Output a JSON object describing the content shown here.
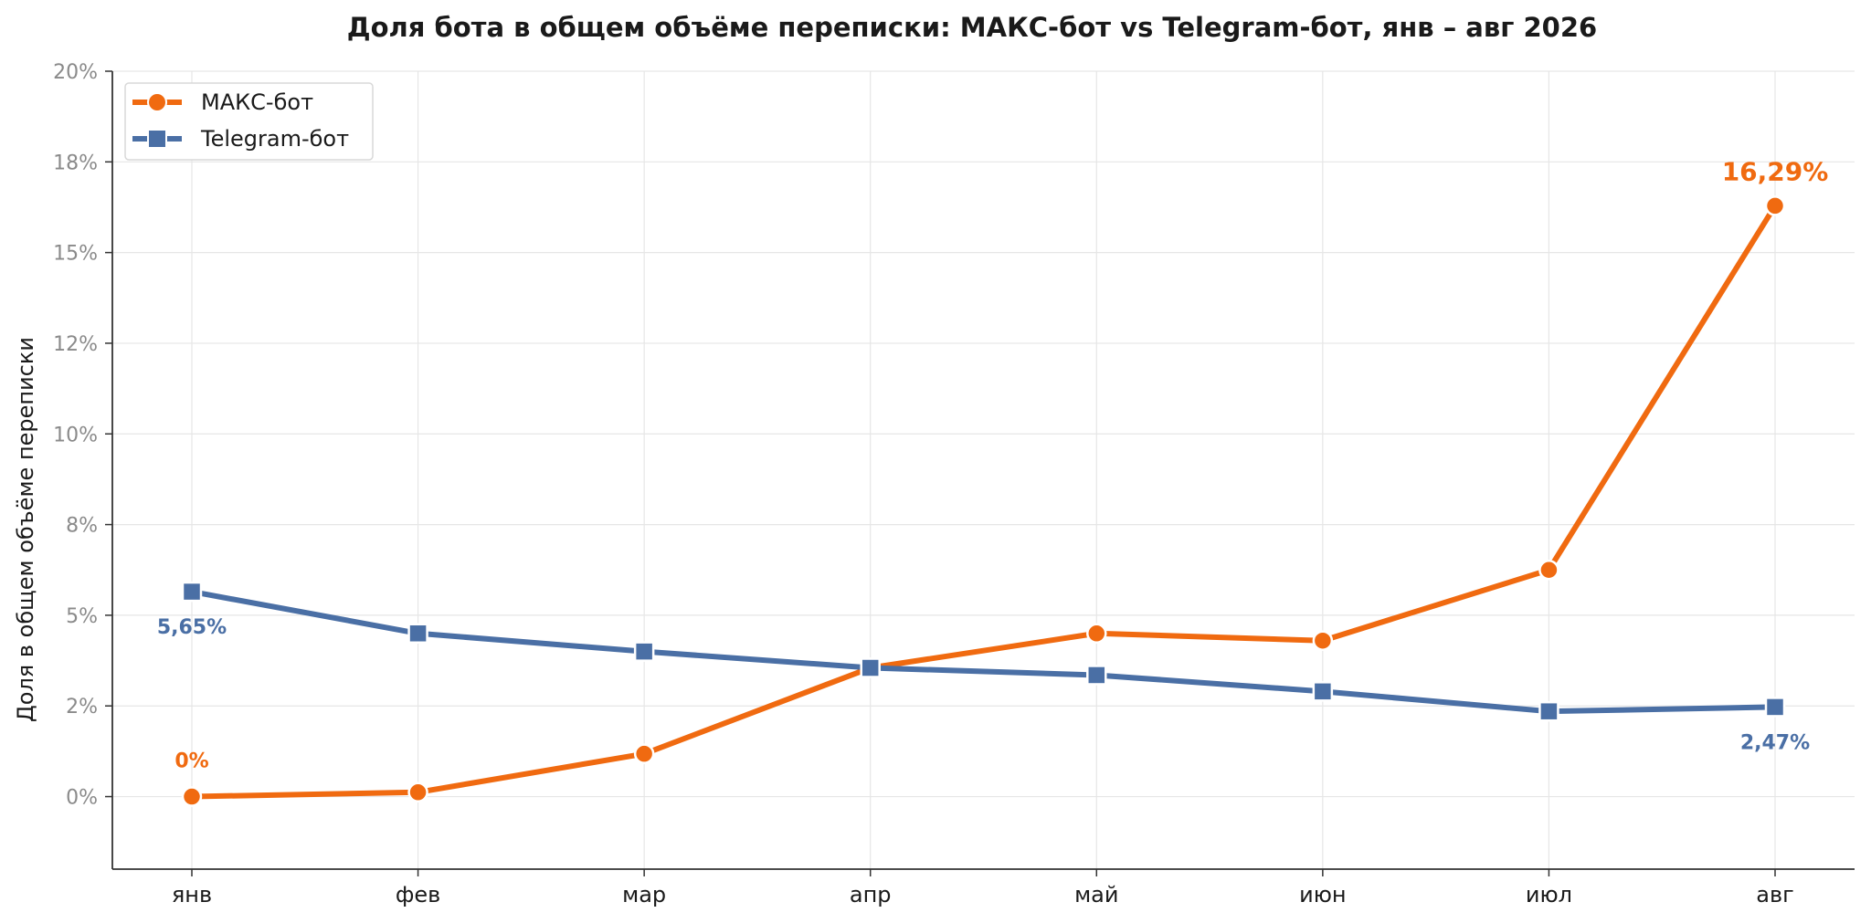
{
  "chart_data": {
    "type": "line",
    "title": "Доля бота в общем объёме переписки: МАКС-бот vs Telegram-бот, янв – авг 2026",
    "xlabel": "",
    "ylabel": "Доля в общем объёме переписки",
    "categories": [
      "янв",
      "фев",
      "мар",
      "апр",
      "май",
      "июн",
      "июл",
      "авг"
    ],
    "ylim": [
      -2,
      20
    ],
    "yticks": [
      0,
      2.5,
      5,
      7.5,
      10,
      12.5,
      15,
      17.5,
      20
    ],
    "ytick_labels": [
      "0%",
      "2%",
      "5%",
      "8%",
      "10%",
      "12%",
      "15%",
      "18%",
      "20%"
    ],
    "grid": true,
    "legend_position": "top-left",
    "series": [
      {
        "name": "МАКС-бот",
        "color": "#f06a10",
        "marker": "circle",
        "values": [
          0.0,
          0.12,
          1.18,
          3.55,
          4.5,
          4.3,
          6.25,
          16.29
        ]
      },
      {
        "name": "Telegram-бот",
        "color": "#4a6fa5",
        "marker": "square",
        "values": [
          5.65,
          4.5,
          4.0,
          3.55,
          3.35,
          2.9,
          2.35,
          2.47
        ]
      }
    ],
    "annotations": [
      {
        "series": 0,
        "index": 0,
        "text": "0%",
        "placement": "above"
      },
      {
        "series": 0,
        "index": 7,
        "text": "16,29%",
        "placement": "above"
      },
      {
        "series": 1,
        "index": 0,
        "text": "5,65%",
        "placement": "below"
      },
      {
        "series": 1,
        "index": 7,
        "text": "2,47%",
        "placement": "below"
      }
    ]
  }
}
